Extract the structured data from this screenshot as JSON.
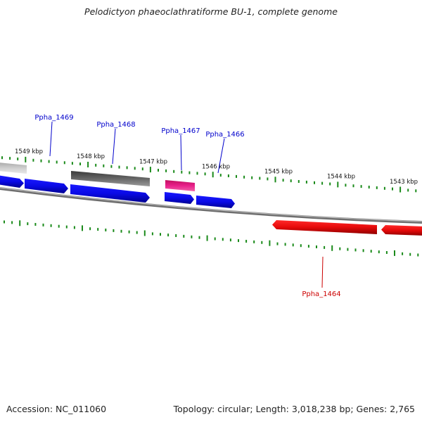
{
  "title": "Pelodictyon phaeoclathratiforme BU-1, complete genome",
  "footer": {
    "accession": "Accession: NC_011060",
    "stats": "Topology: circular; Length: 3,018,238 bp; Genes: 2,765"
  },
  "colors": {
    "backbone": "#8a8a8a",
    "ticks": "#1a8a1a",
    "label_forward": "#0000cc",
    "label_reverse": "#cc0000",
    "gene_forward": "#1010ee",
    "gene_reverse": "#ee1010",
    "gene_gray_light": "#c4c4c4",
    "gene_gray_dark": "#5a5a5a",
    "gene_pink": "#e0207a"
  },
  "scale": {
    "labels": [
      "1549 kbp",
      "1548 kbp",
      "1547 kbp",
      "1546 kbp",
      "1545 kbp",
      "1544 kbp",
      "1543 kbp"
    ]
  },
  "gene_labels": [
    {
      "text": "Ppha_1469",
      "strand": "forward"
    },
    {
      "text": "Ppha_1468",
      "strand": "forward"
    },
    {
      "text": "Ppha_1467",
      "strand": "forward"
    },
    {
      "text": "Ppha_1466",
      "strand": "forward"
    },
    {
      "text": "Ppha_1464",
      "strand": "reverse"
    }
  ]
}
